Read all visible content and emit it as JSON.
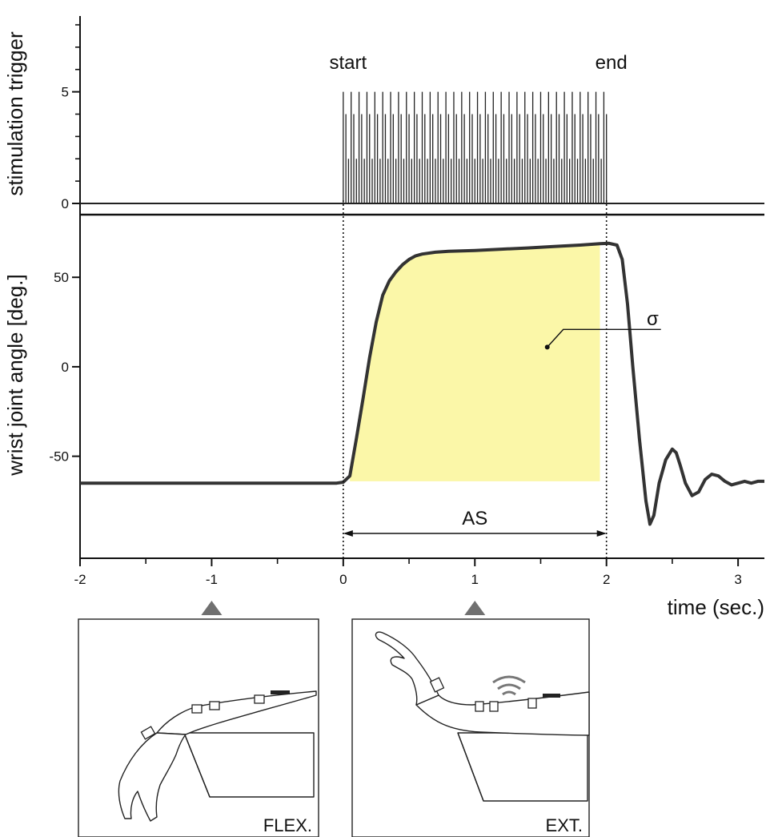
{
  "chart_data": {
    "type": "line",
    "panels": [
      {
        "id": "stimulation",
        "ylabel": "stimulation trigger",
        "ylim": [
          0,
          8
        ],
        "yticks": [
          0,
          5
        ],
        "y_minor_ticks": [
          1,
          2,
          3,
          4,
          6,
          7,
          8
        ],
        "series": [
          {
            "kind": "pulse-train",
            "baseline": 0,
            "start": 0,
            "end": 2,
            "pulse_heights": [
              5,
              4,
              2
            ],
            "pulses_per_second": 50
          }
        ]
      },
      {
        "id": "angle",
        "ylabel": "wrist joint angle [deg.]",
        "ylim": [
          -107,
          85
        ],
        "yticks": [
          50,
          0,
          -50
        ],
        "tick_labels": [
          "50",
          "0",
          "-50"
        ],
        "series": [
          {
            "x": [
              -2,
              -0.05,
              0,
              0.05,
              0.1,
              0.15,
              0.2,
              0.25,
              0.3,
              0.35,
              0.4,
              0.45,
              0.5,
              0.55,
              0.6,
              0.7,
              0.8,
              1.0,
              1.2,
              1.4,
              1.6,
              1.8,
              1.95,
              2.02,
              2.08,
              2.12,
              2.16,
              2.2,
              2.25,
              2.3,
              2.33,
              2.36,
              2.4,
              2.45,
              2.5,
              2.53,
              2.56,
              2.6,
              2.65,
              2.7,
              2.75,
              2.8,
              2.85,
              2.9,
              2.95,
              3.0,
              3.05,
              3.1,
              3.15,
              3.2
            ],
            "y": [
              -65,
              -65,
              -64.5,
              -61,
              -40,
              -18,
              5,
              25,
              40,
              48,
              53,
              57,
              60,
              62,
              63,
              64,
              64.5,
              65,
              65.7,
              66.4,
              67.2,
              68,
              68.8,
              69,
              68,
              60,
              35,
              0,
              -40,
              -75,
              -88,
              -83,
              -65,
              -52,
              -46,
              -48,
              -55,
              -65,
              -72,
              -70,
              -63,
              -60,
              -61,
              -64,
              -66,
              -65,
              -64,
              -65,
              -64,
              -64
            ],
            "fill_region": {
              "x": [
                0.05,
                1.95
              ],
              "to": -64
            },
            "dot": {
              "x": 1.55,
              "y": 11
            }
          }
        ]
      }
    ],
    "x": {
      "label": "time (sec.)",
      "lim": [
        -2,
        3.2
      ],
      "ticks": [
        -2,
        -1,
        0,
        1,
        2,
        3
      ],
      "minor_ticks": [
        -1.5,
        -0.5,
        0.5,
        1.5,
        2.5
      ]
    },
    "markers": [
      {
        "x": 0,
        "label": "start"
      },
      {
        "x": 2,
        "label": "end"
      }
    ],
    "annotations": {
      "sigma": "σ",
      "span_label": "AS",
      "span": [
        0,
        2
      ]
    },
    "colors": {
      "fill": "#fbf7a8",
      "trace": "#333333",
      "triangle": "#707070"
    }
  },
  "panels_illustration": [
    {
      "label": "FLEX.",
      "at_x": -1
    },
    {
      "label": "EXT.",
      "at_x": 1
    }
  ]
}
